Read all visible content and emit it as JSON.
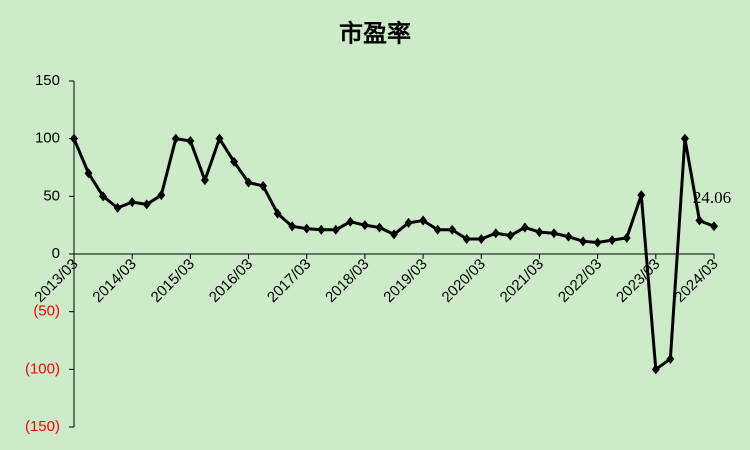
{
  "chart_data": {
    "type": "line",
    "title": "市盈率",
    "categories": [
      "2013/03",
      null,
      null,
      null,
      "2014/03",
      null,
      null,
      null,
      "2015/03",
      null,
      null,
      null,
      "2016/03",
      null,
      null,
      null,
      "2017/03",
      null,
      null,
      null,
      "2018/03",
      null,
      null,
      null,
      "2019/03",
      null,
      null,
      null,
      "2020/03",
      null,
      null,
      null,
      "2021/03",
      null,
      null,
      null,
      "2022/03",
      null,
      null,
      null,
      "2023/03",
      null,
      null,
      null,
      "2024/03"
    ],
    "series": [
      {
        "name": "市盈率",
        "color": "#000000",
        "values": [
          100,
          70,
          50,
          40,
          45,
          43,
          51,
          100,
          98,
          64,
          100,
          80,
          62,
          59,
          35,
          24,
          22,
          21,
          21,
          28,
          25,
          23,
          17,
          27,
          29,
          21,
          21,
          13,
          13,
          18,
          16,
          23,
          19,
          18,
          15,
          11,
          10,
          12,
          14,
          51,
          -100,
          -91,
          100,
          29,
          24.06
        ]
      }
    ],
    "ylim": [
      -150,
      150
    ],
    "yticks": [
      {
        "value": -150,
        "label": "(150)"
      },
      {
        "value": -100,
        "label": "(100)"
      },
      {
        "value": -50,
        "label": "(50)"
      },
      0,
      50,
      100,
      150
    ],
    "negative_tick_color": "#ff0000",
    "grid": false,
    "labeled_point": 44
  }
}
